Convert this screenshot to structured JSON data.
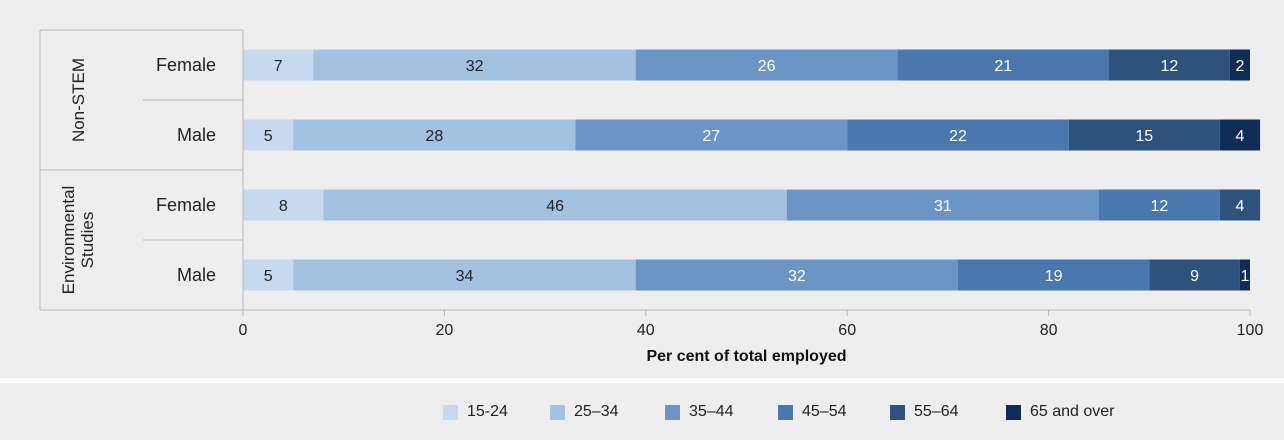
{
  "chart_data": {
    "type": "bar",
    "orientation": "horizontal",
    "stacked": true,
    "xlabel": "Per cent of total employed",
    "ylabel": "",
    "xlim": [
      0,
      100
    ],
    "x_ticks": [
      "0",
      "20",
      "40",
      "60",
      "80",
      "100"
    ],
    "groups": [
      {
        "label": "Non-STEM",
        "rows": [
          "Female",
          "Male"
        ]
      },
      {
        "label": "Environmental Studies",
        "rows": [
          "Female",
          "Male"
        ]
      }
    ],
    "series": [
      {
        "name": "15-24",
        "color": "#c6d9ee",
        "values": [
          7,
          5,
          8,
          5
        ]
      },
      {
        "name": "25–34",
        "color": "#a3c1e1",
        "values": [
          32,
          28,
          46,
          34
        ]
      },
      {
        "name": "35–44",
        "color": "#6a95c5",
        "values": [
          26,
          27,
          31,
          32
        ]
      },
      {
        "name": "45–54",
        "color": "#4a78ae",
        "values": [
          21,
          22,
          12,
          19
        ]
      },
      {
        "name": "55–64",
        "color": "#2e527e",
        "values": [
          12,
          15,
          4,
          9
        ]
      },
      {
        "name": "65 and over",
        "color": "#0f2c56",
        "values": [
          2,
          4,
          0,
          1
        ]
      }
    ],
    "grid": false,
    "legend_position": "bottom"
  }
}
